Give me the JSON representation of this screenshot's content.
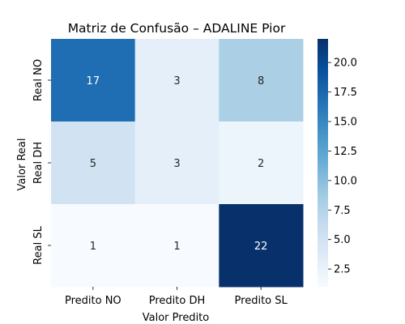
{
  "chart_data": {
    "type": "heatmap",
    "title": "Matriz de Confusão – ADALINE Pior",
    "xlabel": "Valor Predito",
    "ylabel": "Valor Real",
    "x_categories": [
      "Predito NO",
      "Predito DH",
      "Predito SL"
    ],
    "y_categories": [
      "Real NO",
      "Real DH",
      "Real SL"
    ],
    "values": [
      [
        17,
        3,
        8
      ],
      [
        5,
        3,
        2
      ],
      [
        1,
        1,
        22
      ]
    ],
    "colormap": "Blues",
    "color_range": [
      1,
      22
    ],
    "colorbar_ticks": [
      "2.5",
      "5.0",
      "7.5",
      "10.0",
      "12.5",
      "15.0",
      "17.5",
      "20.0"
    ],
    "colorbar_tick_values": [
      2.5,
      5.0,
      7.5,
      10.0,
      12.5,
      15.0,
      17.5,
      20.0
    ],
    "grid": false
  }
}
